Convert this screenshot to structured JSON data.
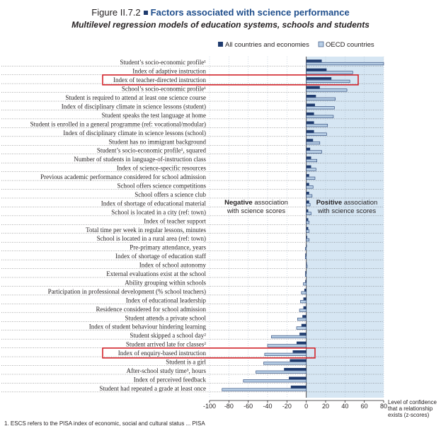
{
  "header": {
    "figure_number": "Figure II.7.2",
    "title": "Factors associated with science performance",
    "subtitle": "Multilevel regression models of education systems, schools and students"
  },
  "colors": {
    "all_countries": "#1f3b6e",
    "oecd": "#b8cfe6",
    "oecd_stroke": "#1f3b6e",
    "positive_region": "#d6e6f3",
    "highlight": "#d2232a"
  },
  "chart_data": {
    "type": "bar",
    "orientation": "horizontal",
    "title": "Factors associated with science performance",
    "xlim": [
      -100,
      80
    ],
    "xticks": [
      -100,
      -80,
      -60,
      -40,
      -20,
      0,
      20,
      40,
      60,
      80
    ],
    "xtick_labels": [
      "-100",
      "-80",
      "-60",
      "-40",
      "-20",
      "0",
      "20",
      "40",
      "60",
      "80"
    ],
    "xlabel": "Level of confidence that a relationship exists (z-scores)",
    "xlabel_lines": [
      "Level of confidence",
      "that a relationship",
      "exists (z-scores)"
    ],
    "legend": [
      {
        "key": "all",
        "label": "All countries and economies"
      },
      {
        "key": "oecd",
        "label": "OECD countries"
      }
    ],
    "legend_position": "top-right",
    "annotations": {
      "negative_bold": "Negative",
      "negative_rest": " association",
      "negative_line2": "with science scores",
      "positive_bold": "Positive",
      "positive_rest": " association",
      "positive_line2": "with science scores"
    },
    "highlighted": [
      "Index of teacher-directed instruction",
      "Index of enquiry-based instruction"
    ],
    "categories": [
      "Student’s socio-economic profile¹",
      "Index of adaptive instruction",
      "Index of teacher-directed instruction",
      "School’s socio-economic profile¹",
      "Student is required to attend at least one science course",
      "Index of disciplinary climate in science lessons (student)",
      "Student speaks the test language at home",
      "Student is enrolled in a general programme (ref: vocational/modular)",
      "Index of disciplinary climate in science lessons (school)",
      "Student has no immigrant background",
      "Student’s socio-economic profile¹, squared",
      "Number of students in language-of-instruction class",
      "Index of science-specific resources",
      "Previous academic performance considered for school admission",
      "School offers science competitions",
      "School offers a science club",
      "Index of shortage of educational material",
      "School is located in a city (ref: town)",
      "Index of teacher support",
      "Total time per week in regular lessons, minutes",
      "School is located in a rural area (ref: town)",
      "Pre-primary attendance, years",
      "Index of shortage of education staff",
      "Index of school autonomy",
      "External evaluations exist at the school",
      "Ability grouping within schools",
      "Participation in professional development (% school teachers)",
      "Index of educational leadership",
      "Residence considered for school admission",
      "Student attends a private school",
      "Index of student behaviour hindering learning",
      "Student skipped a school day²",
      "Student arrived late for classes²",
      "Index of enquiry-based instruction",
      "Student is a girl",
      "After-school study time³, hours",
      "Index of perceived feedback",
      "Student had repeated a grade at least once"
    ],
    "series": [
      {
        "name": "All countries and economies",
        "values": [
          16,
          21,
          26,
          14,
          10,
          9,
          8,
          8,
          8,
          7,
          4,
          5,
          5,
          3,
          3,
          3,
          3,
          2,
          2,
          2,
          1,
          0,
          -1,
          0,
          -1,
          -1,
          -2,
          -3,
          -3,
          -4,
          -5,
          -7,
          -10,
          -14,
          -17,
          -23,
          -18,
          -16
        ]
      },
      {
        "name": "OECD countries",
        "values": [
          80,
          48,
          45,
          42,
          30,
          29,
          28,
          22,
          21,
          14,
          16,
          11,
          10,
          9,
          7,
          6,
          4,
          5,
          3,
          3,
          3,
          -1,
          -1,
          1,
          -1,
          -3,
          -5,
          -6,
          -7,
          -9,
          -10,
          -36,
          -40,
          -43,
          -44,
          -52,
          -65,
          -87
        ]
      }
    ]
  },
  "footnote": "1. ESCS refers to the PISA index of economic, social and cultural status ... PISA"
}
